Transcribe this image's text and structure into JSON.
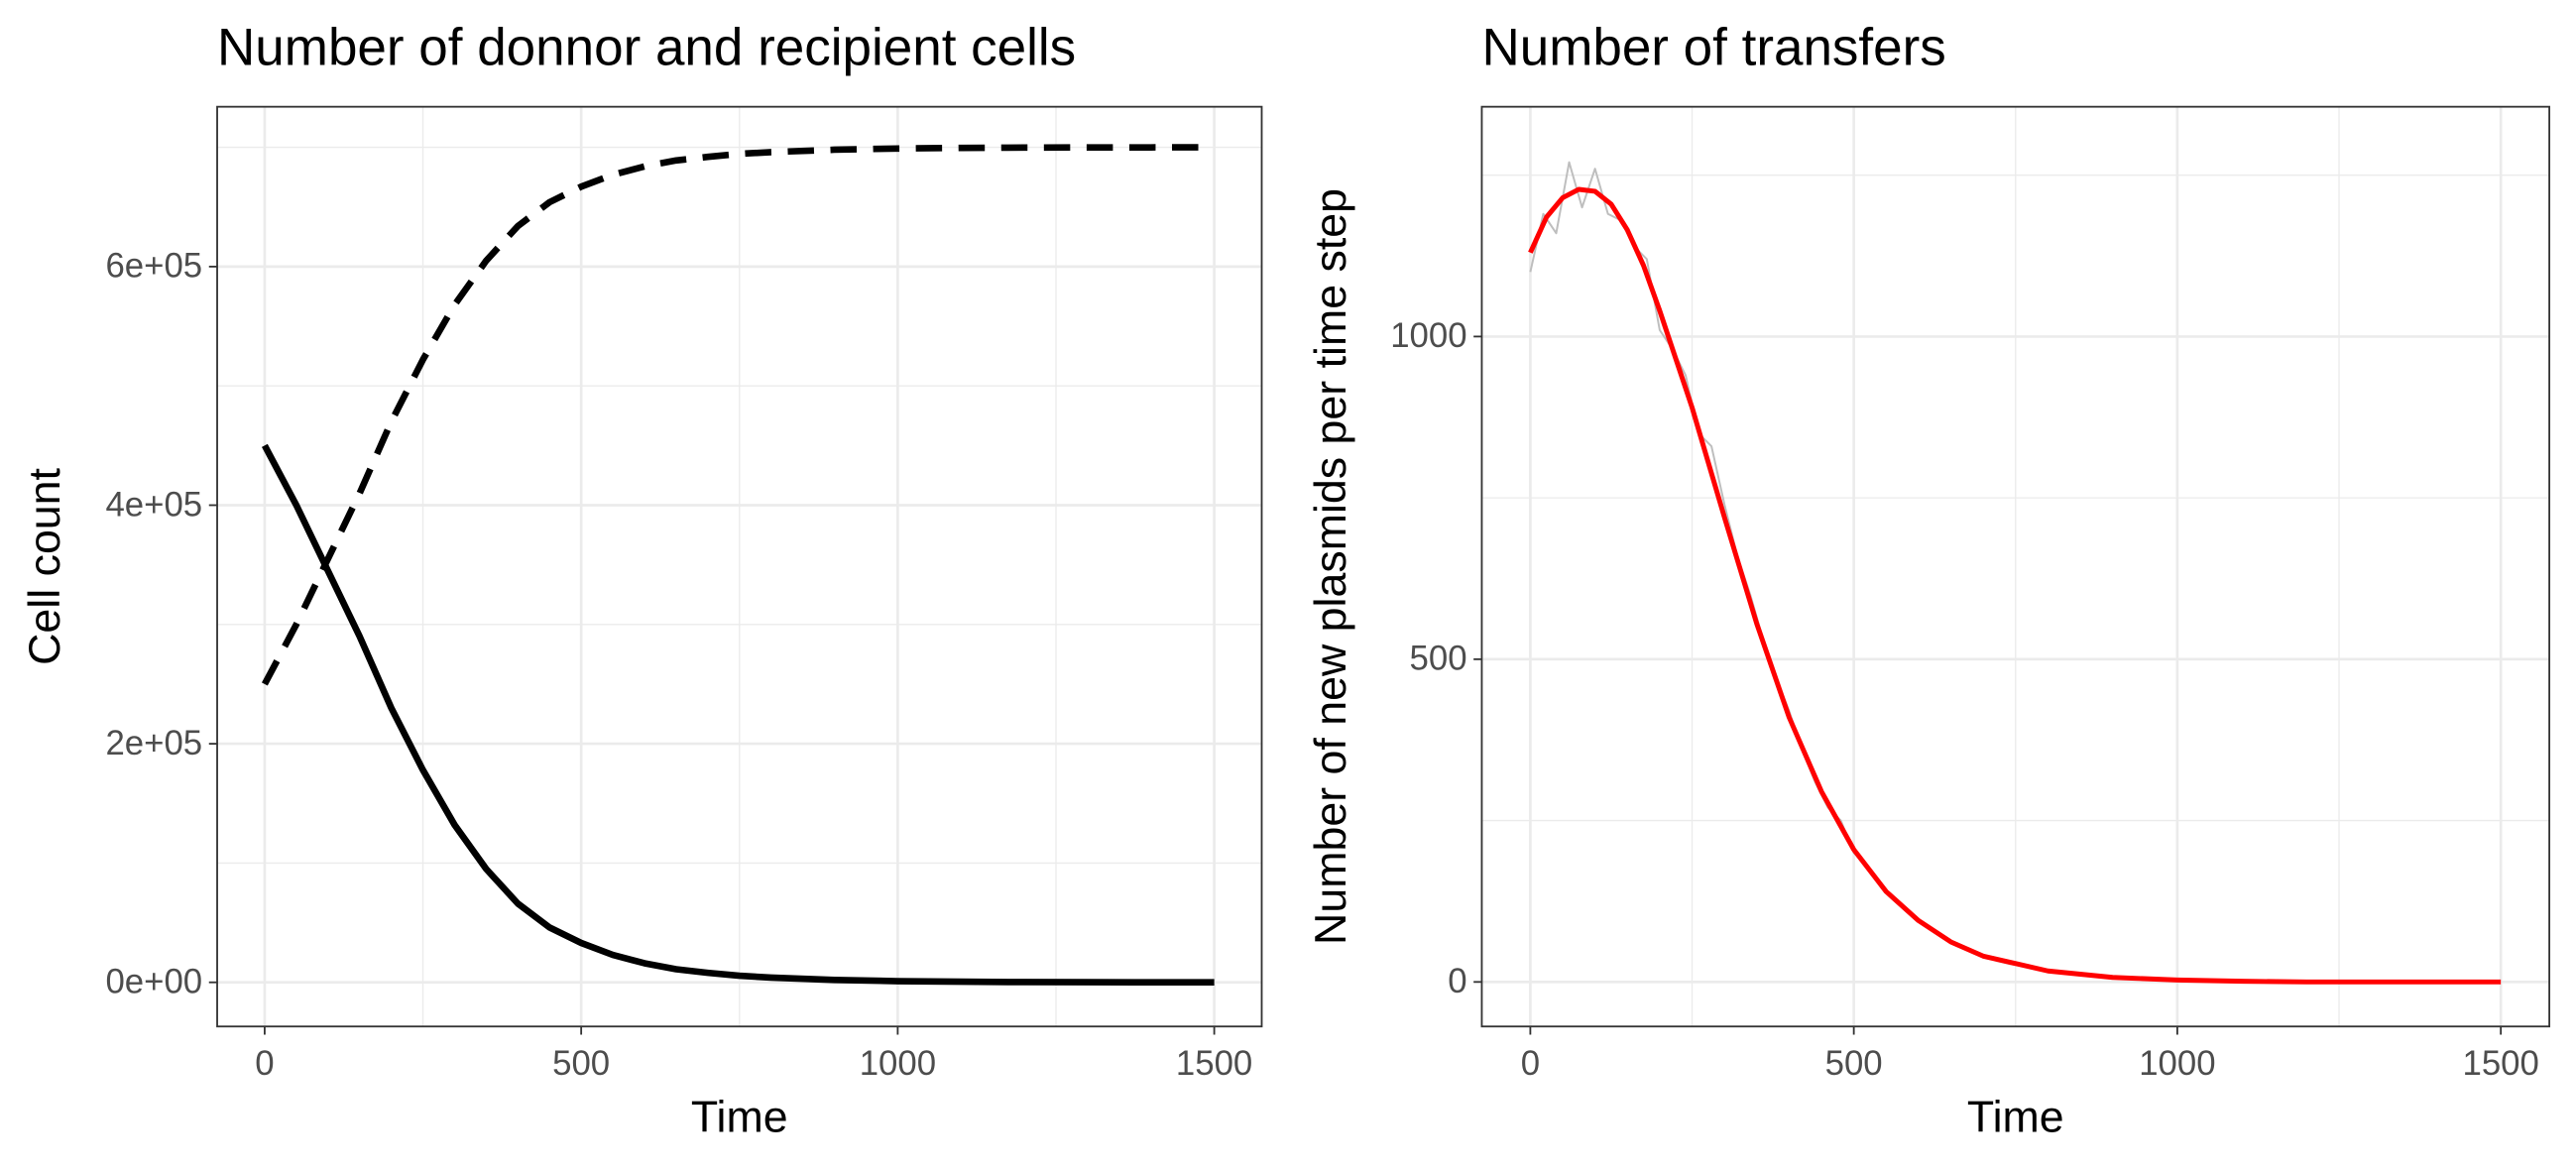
{
  "chart_data": [
    {
      "type": "line",
      "title": "Number of donnor and recipient cells",
      "xlabel": "Time",
      "ylabel": "Cell count",
      "xlim": [
        -75,
        1575
      ],
      "xticks": [
        0,
        500,
        1000,
        1500
      ],
      "ylim": [
        -37000,
        734000
      ],
      "yticks": [
        {
          "value": 0,
          "label": "0e+00"
        },
        {
          "value": 200000,
          "label": "2e+05"
        },
        {
          "value": 400000,
          "label": "4e+05"
        },
        {
          "value": 600000,
          "label": "6e+05"
        }
      ],
      "grid": true,
      "minor_grid": true,
      "series": [
        {
          "color": "#000000",
          "dash": "solid",
          "x": [
            0,
            50,
            100,
            150,
            200,
            250,
            300,
            350,
            400,
            450,
            500,
            550,
            600,
            650,
            700,
            750,
            800,
            900,
            1000,
            1100,
            1200,
            1300,
            1400,
            1500
          ],
          "values": [
            450000,
            400000,
            345000,
            290000,
            230000,
            178000,
            132000,
            95000,
            66000,
            46000,
            33000,
            23000,
            16000,
            11000,
            8000,
            5500,
            4000,
            2000,
            1000,
            500,
            200,
            100,
            50,
            0
          ]
        },
        {
          "color": "#000000",
          "dash": "dashed",
          "x": [
            0,
            50,
            100,
            150,
            200,
            250,
            300,
            350,
            400,
            450,
            500,
            550,
            600,
            650,
            700,
            750,
            800,
            900,
            1000,
            1100,
            1200,
            1300,
            1400,
            1500
          ],
          "values": [
            250000,
            300000,
            355000,
            410000,
            470000,
            522000,
            568000,
            605000,
            634000,
            654000,
            667000,
            677000,
            684000,
            689000,
            692000,
            694500,
            696000,
            698000,
            699000,
            699500,
            699800,
            699900,
            699950,
            700000
          ]
        }
      ]
    },
    {
      "type": "line",
      "title": "Number of transfers",
      "xlabel": "Time",
      "ylabel": "Number of new plasmids per time step",
      "xlim": [
        -75,
        1575
      ],
      "xticks": [
        0,
        500,
        1000,
        1500
      ],
      "ylim": [
        -69,
        1356
      ],
      "yticks": [
        0,
        500,
        1000
      ],
      "grid": true,
      "minor_grid": true,
      "series": [
        {
          "color": "#bebebe",
          "dash": "solid",
          "width": 1.2,
          "x": [
            0,
            20,
            40,
            60,
            80,
            100,
            120,
            140,
            160,
            180,
            200,
            220,
            240,
            260,
            280,
            300,
            320,
            340,
            360,
            380,
            400,
            420,
            440,
            460,
            480,
            500,
            520,
            540,
            560,
            580,
            600,
            620,
            640,
            660,
            680,
            700,
            720,
            740,
            760,
            780,
            800,
            900,
            1000,
            1100,
            1200,
            1300,
            1400,
            1500
          ],
          "values": [
            1100,
            1190,
            1160,
            1270,
            1200,
            1260,
            1190,
            1180,
            1140,
            1120,
            1010,
            980,
            940,
            850,
            830,
            740,
            660,
            600,
            530,
            470,
            420,
            360,
            310,
            270,
            250,
            200,
            180,
            150,
            130,
            110,
            95,
            80,
            68,
            60,
            48,
            40,
            33,
            28,
            25,
            20,
            17,
            8,
            3,
            1,
            0,
            0,
            0,
            0
          ]
        },
        {
          "color": "#ff0000",
          "dash": "solid",
          "width": 3,
          "x": [
            0,
            25,
            50,
            75,
            100,
            125,
            150,
            175,
            200,
            250,
            300,
            350,
            400,
            450,
            500,
            550,
            600,
            650,
            700,
            800,
            900,
            1000,
            1100,
            1200,
            1500
          ],
          "values": [
            1130,
            1185,
            1215,
            1228,
            1225,
            1205,
            1165,
            1110,
            1040,
            890,
            720,
            555,
            410,
            295,
            205,
            140,
            95,
            62,
            40,
            17,
            7,
            3,
            1,
            0,
            0
          ]
        }
      ]
    }
  ]
}
